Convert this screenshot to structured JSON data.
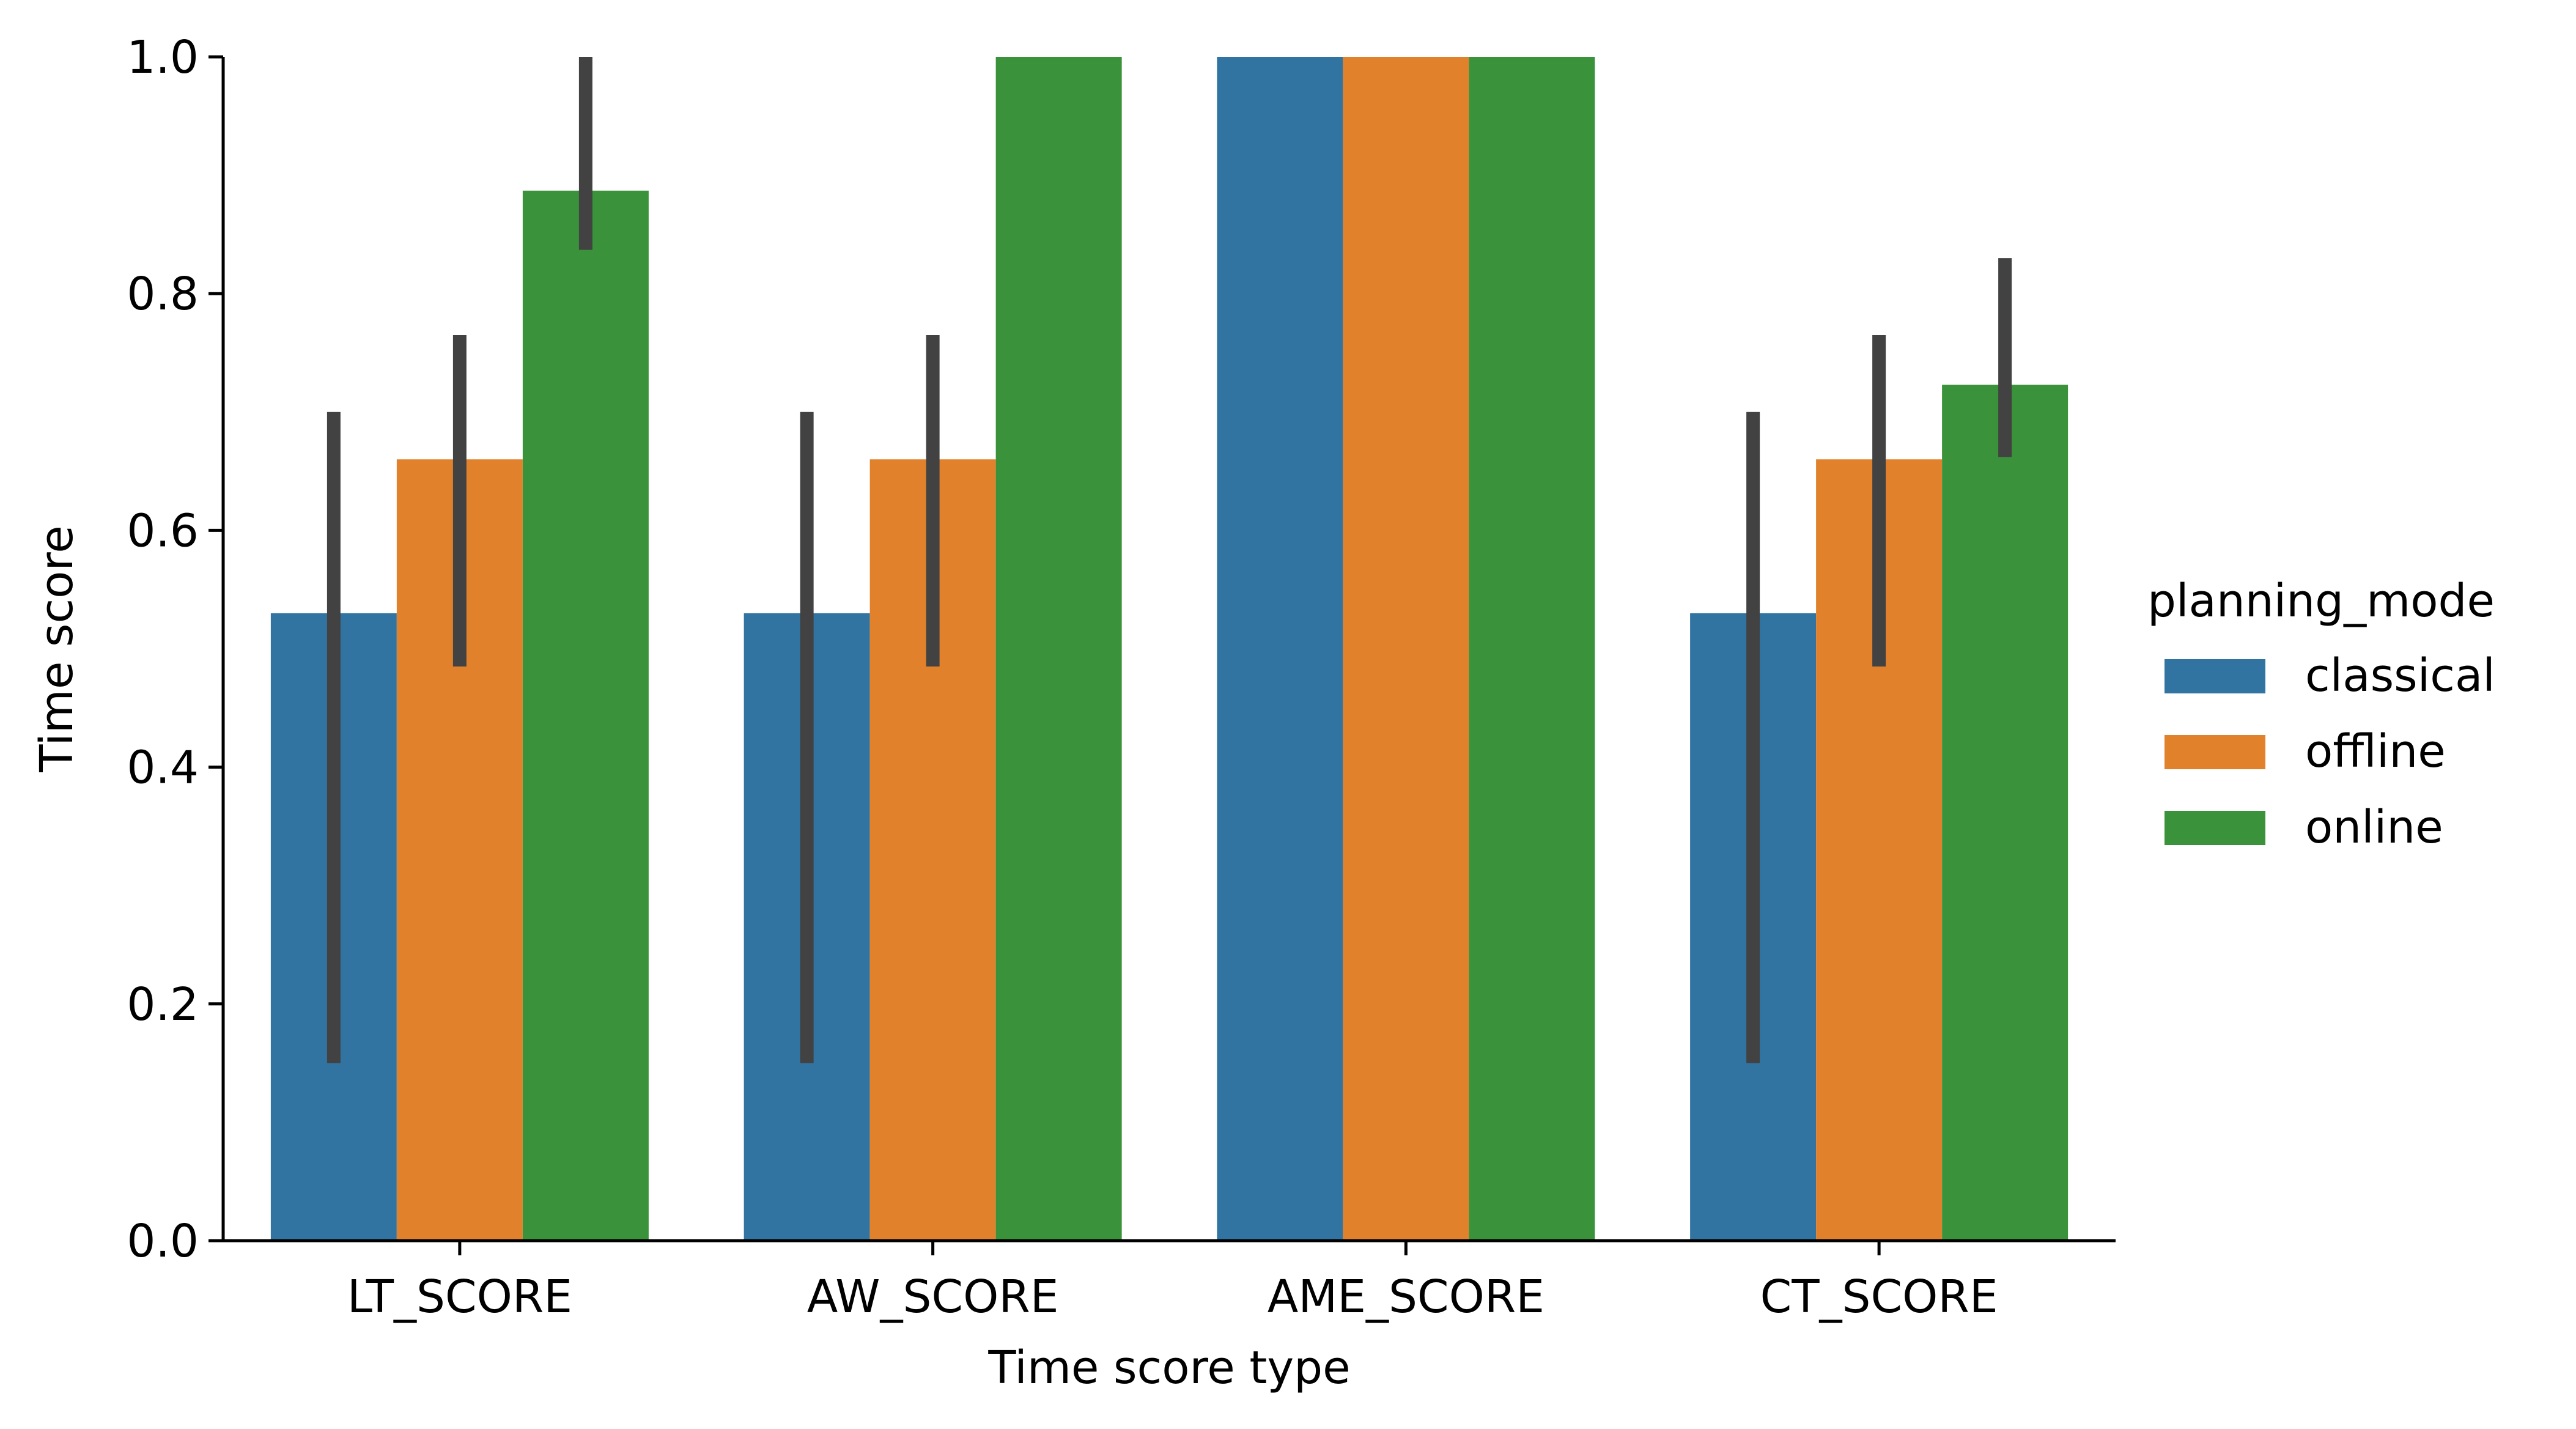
{
  "chart_data": {
    "type": "bar",
    "title": "",
    "xlabel": "Time score type",
    "ylabel": "Time score",
    "ylim": [
      0.0,
      1.0
    ],
    "yticks": [
      0.0,
      0.2,
      0.4,
      0.6,
      0.8,
      1.0
    ],
    "ytick_labels": [
      "0.0",
      "0.2",
      "0.4",
      "0.6",
      "0.8",
      "1.0"
    ],
    "categories": [
      "LT_SCORE",
      "AW_SCORE",
      "AME_SCORE",
      "CT_SCORE"
    ],
    "legend": {
      "title": "planning_mode",
      "placement": "right"
    },
    "grid": false,
    "error_bar_color": "#424242",
    "series": [
      {
        "name": "classical",
        "color": "#3274a1",
        "values": [
          0.53,
          0.53,
          1.0,
          0.53
        ],
        "error_low": [
          0.15,
          0.15,
          null,
          0.15
        ],
        "error_high": [
          0.7,
          0.7,
          null,
          0.7
        ]
      },
      {
        "name": "offline",
        "color": "#e1812c",
        "values": [
          0.66,
          0.66,
          1.0,
          0.66
        ],
        "error_low": [
          0.485,
          0.485,
          null,
          0.485
        ],
        "error_high": [
          0.765,
          0.765,
          null,
          0.765
        ]
      },
      {
        "name": "online",
        "color": "#3a923a",
        "values": [
          0.887,
          1.0,
          1.0,
          0.723
        ],
        "error_low": [
          0.837,
          null,
          null,
          0.662
        ],
        "error_high": [
          1.0,
          null,
          null,
          0.83
        ]
      }
    ]
  }
}
